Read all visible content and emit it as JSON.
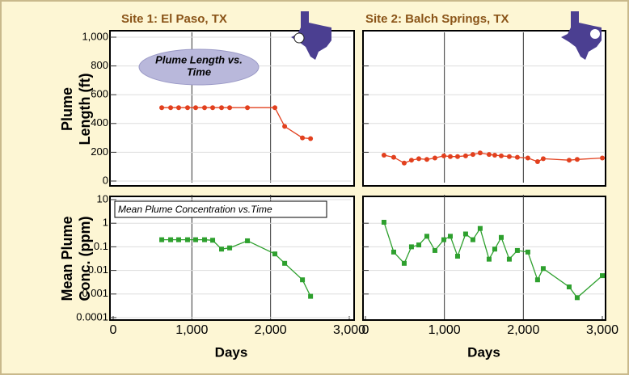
{
  "chart_data": [
    {
      "type": "line",
      "title": "Site 1:  El Paso, TX",
      "ylabel": [
        "Plume",
        "Length (ft)"
      ],
      "annotation": [
        "Plume Length vs.",
        "Time"
      ],
      "x": [
        617,
        730,
        832,
        945,
        1048,
        1161,
        1264,
        1377,
        1480,
        1706,
        2055,
        2179,
        2405,
        2508
      ],
      "values": [
        510,
        510,
        510,
        510,
        510,
        510,
        510,
        510,
        510,
        510,
        510,
        380,
        300,
        295
      ],
      "color": "#e2401e",
      "xlim": [
        0,
        3000
      ],
      "xticks": [
        1000,
        2000
      ],
      "ylim": [
        0,
        1000
      ],
      "yticks": [
        0,
        200,
        400,
        600,
        800,
        {
          "value": 1000,
          "label": "1,000"
        }
      ]
    },
    {
      "type": "line",
      "title": "Site 2:  Balch Springs, TX",
      "x": [
        235,
        358,
        491,
        583,
        676,
        778,
        880,
        993,
        1075,
        1167,
        1269,
        1361,
        1453,
        1566,
        1638,
        1720,
        1822,
        1924,
        2057,
        2180,
        2252,
        2580,
        2682,
        3000
      ],
      "values": [
        180,
        165,
        125,
        145,
        155,
        150,
        160,
        175,
        170,
        170,
        175,
        185,
        195,
        185,
        180,
        175,
        170,
        165,
        160,
        135,
        155,
        145,
        150,
        160
      ],
      "color": "#e2401e",
      "xlim": [
        0,
        3000
      ],
      "xticks": [
        1000,
        2000
      ],
      "ylim": [
        0,
        1000
      ],
      "yticks": [
        200,
        400,
        600,
        800
      ]
    },
    {
      "type": "line",
      "ylabel": [
        "Mean Plume",
        "Conc. (ppm)"
      ],
      "xlabel": "Days",
      "annotation": [
        "Mean Plume Concentration  vs.Time"
      ],
      "x": [
        617,
        730,
        832,
        945,
        1048,
        1161,
        1264,
        1377,
        1480,
        1706,
        2055,
        2179,
        2405,
        2508
      ],
      "values": [
        0.2,
        0.2,
        0.2,
        0.2,
        0.2,
        0.2,
        0.19,
        0.08,
        0.09,
        0.18,
        0.05,
        0.02,
        0.004,
        0.0008
      ],
      "color": "#2ea02e",
      "log": true,
      "xlim": [
        0,
        3000
      ],
      "xticks": [
        0,
        {
          "value": 1000,
          "label": "1,000"
        },
        {
          "value": 2000,
          "label": "2,000"
        },
        {
          "value": 3000,
          "label": "3,000"
        }
      ],
      "ylim": [
        0.0001,
        10
      ],
      "yticks": [
        10,
        1,
        0.1,
        0.01,
        0.001,
        0.0001
      ]
    },
    {
      "type": "line",
      "xlabel": "Days",
      "x": [
        235,
        358,
        491,
        583,
        676,
        778,
        880,
        993,
        1075,
        1167,
        1269,
        1361,
        1453,
        1566,
        1638,
        1720,
        1822,
        1924,
        2057,
        2180,
        2252,
        2580,
        2682,
        3000
      ],
      "values": [
        1.1,
        0.06,
        0.02,
        0.1,
        0.12,
        0.28,
        0.07,
        0.2,
        0.28,
        0.04,
        0.35,
        0.2,
        0.6,
        0.03,
        0.08,
        0.25,
        0.03,
        0.07,
        0.06,
        0.004,
        0.012,
        0.002,
        0.0007,
        0.006
      ],
      "color": "#2ea02e",
      "log": true,
      "xlim": [
        0,
        3000
      ],
      "xticks": [
        0,
        {
          "value": 1000,
          "label": "1,000"
        },
        {
          "value": 2000,
          "label": "2,000"
        },
        {
          "value": 3000,
          "label": "3,000"
        }
      ],
      "ylim": [
        0.0001,
        10
      ],
      "yticks": [
        1,
        0.1,
        0.01,
        0.001
      ]
    }
  ]
}
